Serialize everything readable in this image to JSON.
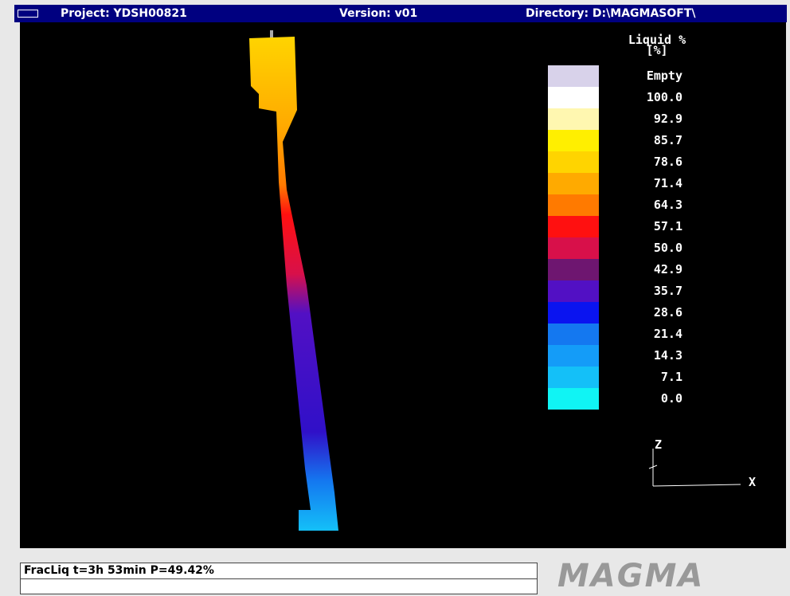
{
  "title_bar": {
    "project": "Project: YDSH00821",
    "version": "Version: v01",
    "directory": "Directory: D:\\MAGMASOFT\\"
  },
  "legend": {
    "title": "Liquid %",
    "unit": "[%]",
    "entries": [
      {
        "label": "Empty",
        "color": "#d8d2ea"
      },
      {
        "label": "100.0",
        "color": "#ffffff"
      },
      {
        "label": "92.9",
        "color": "#fff7b0"
      },
      {
        "label": "85.7",
        "color": "#ffef00"
      },
      {
        "label": "78.6",
        "color": "#ffd400"
      },
      {
        "label": "71.4",
        "color": "#ffaa00"
      },
      {
        "label": "64.3",
        "color": "#ff7a00"
      },
      {
        "label": "57.1",
        "color": "#ff1010"
      },
      {
        "label": "50.0",
        "color": "#d8104a"
      },
      {
        "label": "42.9",
        "color": "#6e1670"
      },
      {
        "label": "35.7",
        "color": "#5210c4"
      },
      {
        "label": "28.6",
        "color": "#0a14f0"
      },
      {
        "label": "21.4",
        "color": "#1478f0"
      },
      {
        "label": "14.3",
        "color": "#149cf8"
      },
      {
        "label": "7.1",
        "color": "#14c0f8"
      },
      {
        "label": "0.0",
        "color": "#10f4f4"
      }
    ]
  },
  "axes": {
    "z": "Z",
    "x": "X"
  },
  "status": "FracLiq t=3h 53min P=49.42%",
  "logo": "MAGMA"
}
